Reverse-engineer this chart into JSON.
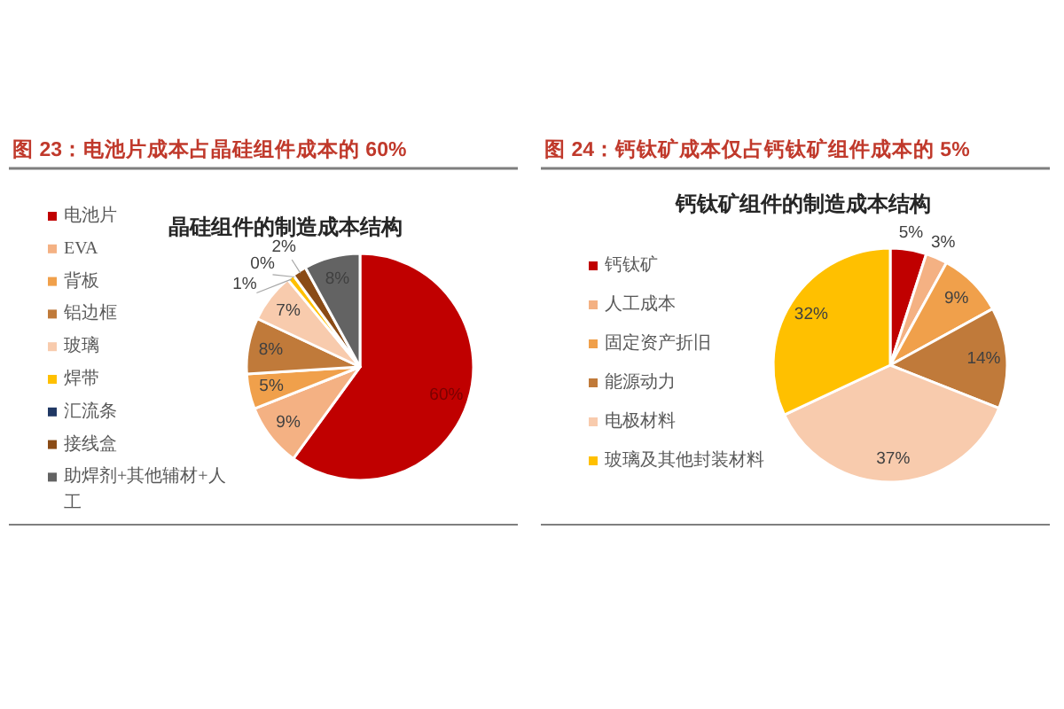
{
  "chart_data": [
    {
      "type": "pie",
      "title": "图 23：电池片成本占晶硅组件成本的 60%",
      "subtitle": "晶硅组件的制造成本结构",
      "categories": [
        "电池片",
        "EVA",
        "背板",
        "铝边框",
        "玻璃",
        "焊带",
        "汇流条",
        "接线盒",
        "助焊剂+其他辅材+人工"
      ],
      "values": [
        60,
        9,
        5,
        8,
        7,
        1,
        0,
        2,
        8
      ],
      "value_labels": [
        "60%",
        "9%",
        "5%",
        "8%",
        "7%",
        "1%",
        "0%",
        "2%",
        "8%"
      ],
      "colors": [
        "#c00000",
        "#f4b183",
        "#f0a04b",
        "#c07a3a",
        "#f8cbad",
        "#ffc000",
        "#203864",
        "#8a4b16",
        "#636363"
      ],
      "legend": "left"
    },
    {
      "type": "pie",
      "title": "图 24：钙钛矿成本仅占钙钛矿组件成本的 5%",
      "subtitle": "钙钛矿组件的制造成本结构",
      "categories": [
        "钙钛矿",
        "人工成本",
        "固定资产折旧",
        "能源动力",
        "电极材料",
        "玻璃及其他封装材料"
      ],
      "values": [
        5,
        3,
        9,
        14,
        37,
        32
      ],
      "value_labels": [
        "5%",
        "3%",
        "9%",
        "14%",
        "37%",
        "32%"
      ],
      "colors": [
        "#c00000",
        "#f4b183",
        "#f0a04b",
        "#c07a3a",
        "#f8cbad",
        "#ffc000"
      ],
      "legend": "left"
    }
  ]
}
